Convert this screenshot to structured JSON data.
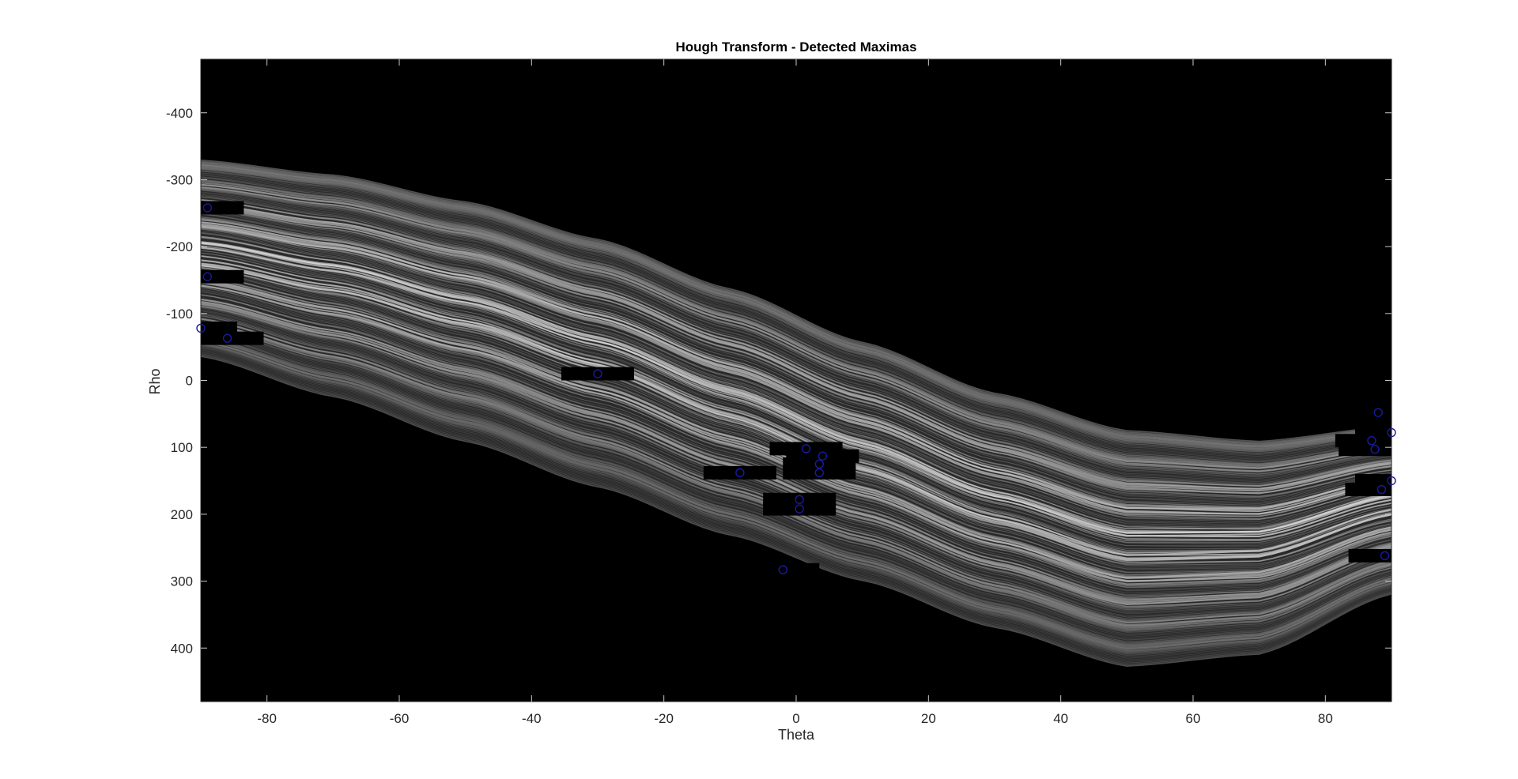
{
  "chart_data": {
    "type": "heatmap",
    "title": "Hough Transform - Detected Maximas",
    "xlabel": "Theta",
    "ylabel": "Rho",
    "xlim": [
      -90,
      90
    ],
    "ylim": [
      -480,
      480
    ],
    "y_direction": "reverse",
    "xticks": [
      -80,
      -60,
      -40,
      -20,
      0,
      20,
      40,
      60,
      80
    ],
    "yticks": [
      -400,
      -300,
      -200,
      -100,
      0,
      100,
      200,
      300,
      400
    ],
    "grid": false,
    "legend": "none",
    "colormap": "gray",
    "background_color": "#000000",
    "marker_color": "#1a1aa0",
    "marker_shape": "circle",
    "accumulator_band": {
      "upper_edge": {
        "theta": [
          -90,
          -70,
          -50,
          -30,
          -10,
          10,
          30,
          50,
          70,
          90
        ],
        "rho": [
          -330,
          -308,
          -268,
          -212,
          -138,
          -58,
          18,
          74,
          90,
          68
        ]
      },
      "lower_edge": {
        "theta": [
          -90,
          -70,
          -50,
          -30,
          -10,
          10,
          30,
          50,
          70,
          90
        ],
        "rho": [
          -35,
          25,
          92,
          160,
          232,
          300,
          370,
          428,
          410,
          320
        ]
      }
    },
    "peaks": [
      {
        "theta": -89,
        "rho": -258
      },
      {
        "theta": -89,
        "rho": -155
      },
      {
        "theta": -90,
        "rho": -78
      },
      {
        "theta": -86,
        "rho": -63
      },
      {
        "theta": -30,
        "rho": -10
      },
      {
        "theta": -8.5,
        "rho": 138
      },
      {
        "theta": 1.5,
        "rho": 102
      },
      {
        "theta": 4,
        "rho": 113
      },
      {
        "theta": 3.5,
        "rho": 125
      },
      {
        "theta": 3.5,
        "rho": 138
      },
      {
        "theta": 0.5,
        "rho": 178
      },
      {
        "theta": 0.5,
        "rho": 192
      },
      {
        "theta": -2,
        "rho": 283
      },
      {
        "theta": 88,
        "rho": 48
      },
      {
        "theta": 90,
        "rho": 78
      },
      {
        "theta": 87,
        "rho": 90
      },
      {
        "theta": 87.5,
        "rho": 103
      },
      {
        "theta": 90,
        "rho": 150
      },
      {
        "theta": 88.5,
        "rho": 163
      },
      {
        "theta": 89,
        "rho": 262
      }
    ]
  }
}
